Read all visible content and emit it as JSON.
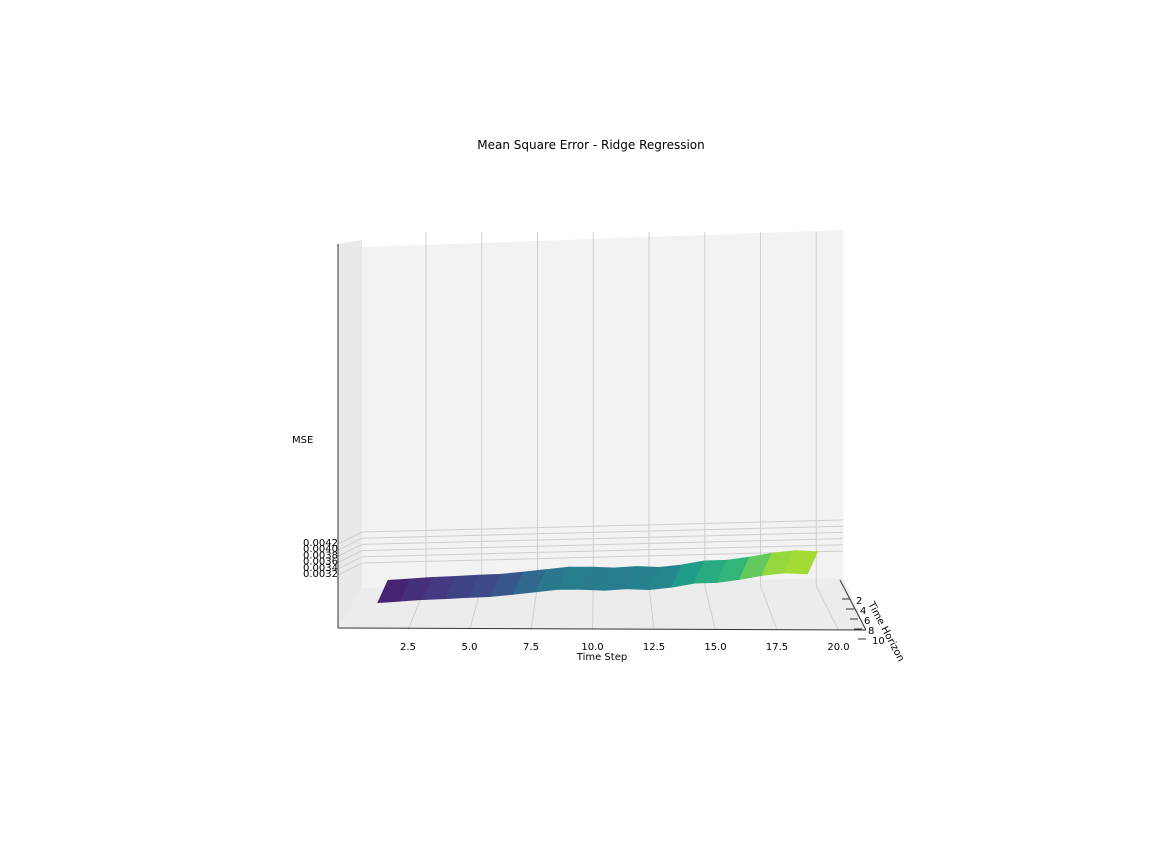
{
  "chart_data": {
    "type": "surface3d",
    "title": "Mean Square Error - Ridge Regression",
    "xlabel": "Time Step",
    "ylabel": "Time Horizon",
    "zlabel": "MSE",
    "x_ticks": [
      "2.5",
      "5.0",
      "7.5",
      "10.0",
      "12.5",
      "15.0",
      "17.5",
      "20.0"
    ],
    "y_ticks": [
      "2",
      "4",
      "6",
      "8",
      "10"
    ],
    "z_ticks": [
      "0.0032",
      "0.0034",
      "0.0036",
      "0.0038",
      "0.0040",
      "0.0042"
    ],
    "zlim": [
      0.00306,
      0.00426
    ],
    "colormap": "viridis",
    "x": [
      1,
      2,
      3,
      4,
      5,
      6,
      7,
      8,
      9,
      10,
      11,
      12,
      13,
      14,
      15,
      16,
      17,
      18,
      19,
      20
    ],
    "mse": [
      0.00315,
      0.0032,
      0.00325,
      0.00328,
      0.00332,
      0.00335,
      0.00342,
      0.0035,
      0.00358,
      0.00358,
      0.00355,
      0.0036,
      0.00357,
      0.00365,
      0.00378,
      0.0038,
      0.0039,
      0.00403,
      0.00411,
      0.00408
    ],
    "horizon_min": 1,
    "horizon_max": 10
  }
}
